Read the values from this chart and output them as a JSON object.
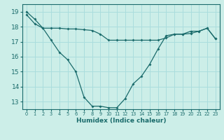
{
  "xlabel": "Humidex (Indice chaleur)",
  "background_color": "#cceee8",
  "line_color": "#1a6b6b",
  "grid_color": "#aadddd",
  "x_values": [
    0,
    1,
    2,
    3,
    4,
    5,
    6,
    7,
    8,
    9,
    10,
    11,
    12,
    13,
    14,
    15,
    16,
    17,
    18,
    19,
    20,
    21,
    22,
    23
  ],
  "series1": [
    19.0,
    18.5,
    17.9,
    17.1,
    16.3,
    15.8,
    15.0,
    13.3,
    12.7,
    12.7,
    12.6,
    12.6,
    13.2,
    14.2,
    14.7,
    15.5,
    16.5,
    17.4,
    17.5,
    17.5,
    17.7,
    17.7,
    17.9,
    17.2
  ],
  "series2": [
    18.8,
    18.2,
    17.9,
    17.9,
    17.9,
    17.85,
    17.85,
    17.8,
    17.75,
    17.5,
    17.1,
    17.1,
    17.1,
    17.1,
    17.1,
    17.1,
    17.1,
    17.25,
    17.5,
    17.5,
    17.55,
    17.7,
    17.9,
    17.2
  ],
  "ylim": [
    12.5,
    19.5
  ],
  "xlim": [
    -0.5,
    23.5
  ],
  "yticks": [
    13,
    14,
    15,
    16,
    17,
    18,
    19
  ],
  "xtick_labels": [
    "0",
    "1",
    "2",
    "3",
    "4",
    "5",
    "6",
    "7",
    "8",
    "9",
    "10",
    "11",
    "12",
    "13",
    "14",
    "15",
    "16",
    "17",
    "18",
    "19",
    "20",
    "21",
    "22",
    "23"
  ]
}
